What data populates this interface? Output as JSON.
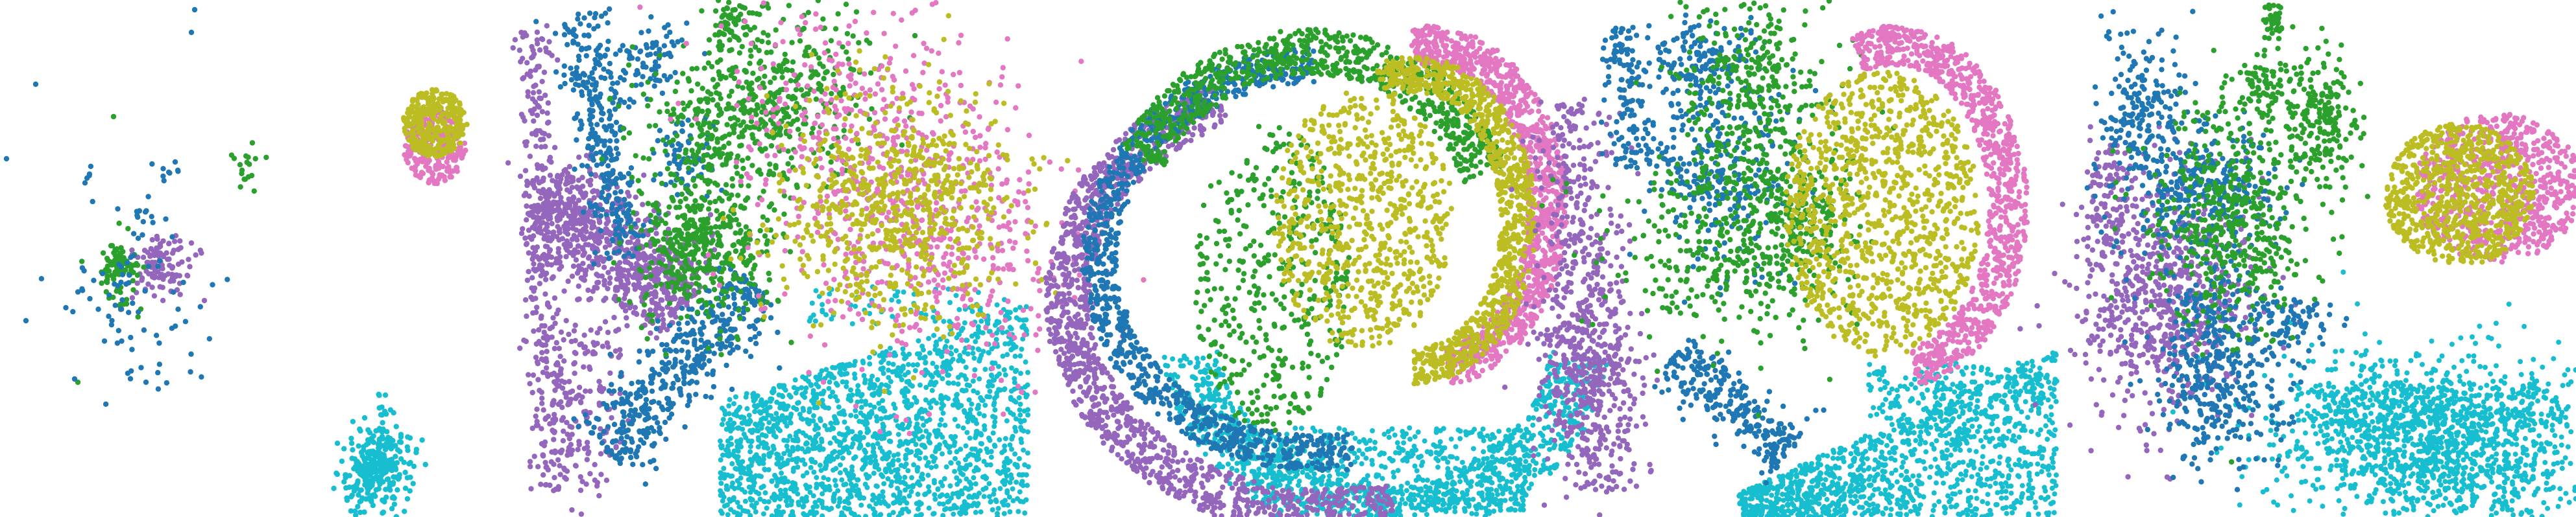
{
  "colors": {
    "blue": "#1f77b4",
    "green": "#2ca02c",
    "purple": "#9467bd",
    "pink": "#e377c2",
    "olive": "#bcbd22",
    "cyan": "#17becf",
    "background": "#ffffff"
  },
  "panels": [
    {
      "name": "panel-1",
      "clusters": [
        "blue",
        "green",
        "purple"
      ]
    },
    {
      "name": "panel-2",
      "clusters": [
        "olive",
        "pink",
        "cyan"
      ]
    },
    {
      "name": "panel-3",
      "clusters": [
        "blue",
        "green",
        "purple",
        "olive",
        "pink",
        "cyan"
      ]
    },
    {
      "name": "panel-4",
      "clusters": [
        "blue",
        "green",
        "purple",
        "olive",
        "pink",
        "cyan"
      ]
    },
    {
      "name": "panel-5",
      "clusters": [
        "blue",
        "green",
        "purple",
        "olive",
        "pink",
        "cyan"
      ]
    },
    {
      "name": "panel-6",
      "clusters": [
        "blue",
        "green",
        "purple",
        "olive",
        "pink",
        "cyan"
      ]
    }
  ]
}
